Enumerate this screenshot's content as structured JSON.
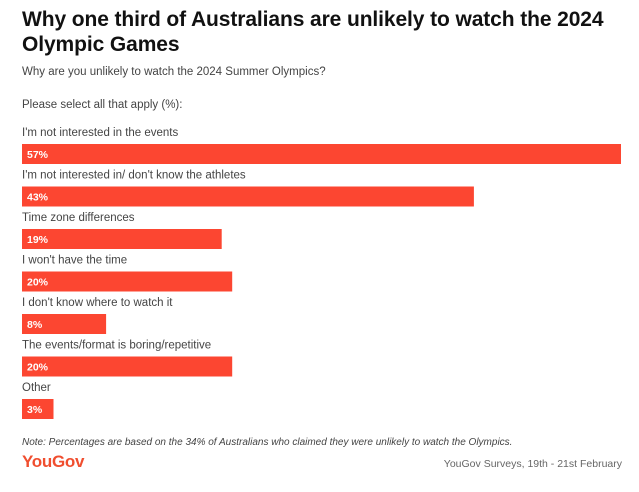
{
  "header": {
    "title": "Why one third of Australians are unlikely to watch the 2024 Olympic Games",
    "subtitle": "Why are you unlikely to watch the 2024 Summer Olympics?",
    "instruction": "Please select all that apply (%):"
  },
  "colors": {
    "bar": "#fc4631",
    "brand": "#f04e2f",
    "text": "#333333"
  },
  "chart_data": {
    "type": "bar",
    "orientation": "horizontal",
    "title": "Why one third of Australians are unlikely to watch the 2024 Olympic Games",
    "subtitle": "Why are you unlikely to watch the 2024 Summer Olympics?",
    "categories": [
      "I'm not interested in the events",
      "I'm not interested in/ don't know the athletes",
      "Time zone differences",
      "I won't have the time",
      "I don't know where to watch it",
      "The events/format is boring/repetitive",
      "Other"
    ],
    "values": [
      57,
      43,
      19,
      20,
      8,
      20,
      3
    ],
    "value_labels": [
      "57%",
      "43%",
      "19%",
      "20%",
      "8%",
      "20%",
      "3%"
    ],
    "xlim": [
      0,
      57
    ],
    "grid": false,
    "legend": "none"
  },
  "footer": {
    "note": "Note: Percentages are based on the 34% of Australians who claimed they were unlikely to watch the Olympics.",
    "logo": "YouGov",
    "source": "YouGov Surveys, 19th - 21st February"
  }
}
